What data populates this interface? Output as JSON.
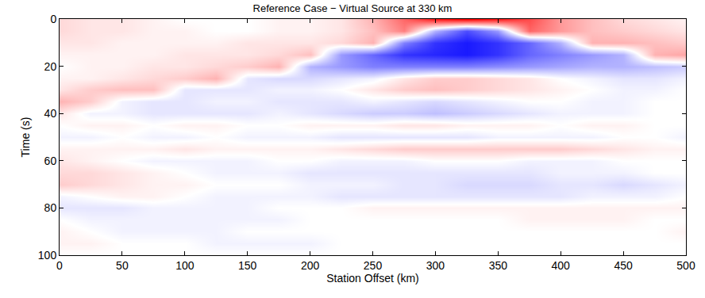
{
  "chart_data": {
    "type": "heatmap",
    "title": "Reference Case − Virtual Source at 330 km",
    "x_label": "Station Offset (km)",
    "y_label": "Time (s)",
    "x": [
      0,
      25,
      50,
      75,
      100,
      125,
      150,
      175,
      200,
      225,
      250,
      275,
      300,
      325,
      350,
      375,
      400,
      425,
      450,
      475,
      500
    ],
    "y": [
      0,
      5,
      10,
      15,
      20,
      25,
      30,
      35,
      40,
      45,
      50,
      55,
      60,
      65,
      70,
      75,
      80,
      85,
      90,
      95,
      100
    ],
    "cells": [
      [
        0.15,
        0.1,
        0.1,
        0.05,
        0,
        0,
        0,
        0.05,
        0.05,
        0.1,
        0.3,
        0.6,
        0.9,
        1,
        0.9,
        0.7,
        0.4,
        0.25,
        0.15,
        0.1,
        0.05
      ],
      [
        0.15,
        0.1,
        0.1,
        0.05,
        0.05,
        0,
        0,
        0.05,
        0.05,
        0.1,
        0.25,
        0.5,
        -0.3,
        -0.7,
        -0.4,
        0.6,
        0.4,
        0.25,
        0.2,
        0.15,
        0.1
      ],
      [
        0.1,
        0.1,
        0.05,
        0.05,
        0.05,
        0.05,
        0.1,
        0.1,
        0.1,
        0.15,
        0.3,
        -0.5,
        -0.8,
        -0.9,
        -0.8,
        -0.6,
        -0.3,
        0.3,
        0.3,
        0.25,
        0.2
      ],
      [
        0.05,
        0.05,
        0.05,
        0.05,
        0.1,
        0.1,
        0.1,
        0.15,
        0.25,
        -0.4,
        -0.6,
        -0.8,
        -0.85,
        -0.9,
        -0.8,
        -0.6,
        -0.5,
        -0.4,
        -0.3,
        0.3,
        0.35
      ],
      [
        0,
        0.05,
        0.05,
        0.1,
        0.1,
        0.15,
        0.2,
        0.3,
        -0.3,
        -0.4,
        -0.5,
        -0.5,
        -0.5,
        -0.5,
        -0.45,
        -0.4,
        -0.35,
        -0.3,
        -0.3,
        -0.25,
        -0.2
      ],
      [
        0.05,
        0.05,
        0.1,
        0.15,
        0.2,
        0.3,
        -0.1,
        -0.15,
        -0.15,
        -0.1,
        -0.05,
        0.1,
        0.2,
        0.2,
        0.15,
        0.1,
        0,
        -0.05,
        -0.1,
        -0.1,
        -0.05
      ],
      [
        0.1,
        0.2,
        0.25,
        0.25,
        -0.1,
        -0.1,
        -0.1,
        -0.05,
        -0.05,
        0,
        0.1,
        0.2,
        0.25,
        0.2,
        0.15,
        0.1,
        0.05,
        0,
        -0.05,
        -0.05,
        0
      ],
      [
        0.3,
        0.2,
        -0.05,
        -0.1,
        -0.1,
        -0.05,
        -0.05,
        -0.1,
        -0.1,
        -0.1,
        -0.05,
        -0.1,
        -0.15,
        -0.1,
        -0.05,
        0,
        0,
        -0.05,
        -0.05,
        0,
        0
      ],
      [
        0.1,
        -0.05,
        -0.05,
        -0.1,
        -0.1,
        -0.1,
        -0.1,
        -0.05,
        -0.1,
        -0.15,
        -0.2,
        -0.2,
        -0.25,
        -0.2,
        -0.15,
        -0.1,
        -0.05,
        -0.05,
        -0.05,
        0,
        0
      ],
      [
        0,
        0.05,
        0.05,
        0,
        0.05,
        0.05,
        0,
        0,
        0.05,
        0.05,
        0.05,
        0.1,
        0.1,
        0.05,
        0.05,
        0.05,
        0,
        0.05,
        0.05,
        0,
        0
      ],
      [
        -0.05,
        -0.05,
        0,
        -0.05,
        -0.05,
        0,
        -0.05,
        -0.05,
        -0.05,
        -0.1,
        -0.1,
        -0.1,
        -0.1,
        -0.1,
        -0.05,
        -0.05,
        -0.05,
        -0.05,
        0,
        0,
        -0.05
      ],
      [
        0.05,
        0.05,
        0.05,
        0.05,
        0.1,
        0.05,
        0.05,
        0.05,
        0.05,
        0.1,
        0.15,
        0.2,
        0.2,
        0.2,
        0.2,
        0.2,
        0.2,
        0.15,
        0.1,
        0.05,
        0.05
      ],
      [
        0.1,
        0.05,
        0,
        -0.05,
        -0.05,
        -0.05,
        -0.05,
        0,
        0,
        -0.05,
        -0.05,
        -0.05,
        0,
        0,
        0,
        -0.05,
        -0.05,
        -0.05,
        0,
        0,
        0
      ],
      [
        0.15,
        0.15,
        0.1,
        0.05,
        0,
        -0.05,
        -0.05,
        -0.05,
        -0.1,
        -0.1,
        -0.1,
        -0.1,
        -0.1,
        -0.1,
        -0.1,
        -0.1,
        -0.05,
        -0.05,
        -0.05,
        0,
        0
      ],
      [
        0.2,
        0.15,
        0.1,
        0.05,
        0.05,
        0,
        0,
        0,
        -0.05,
        -0.05,
        -0.05,
        -0.1,
        -0.1,
        -0.15,
        -0.15,
        -0.15,
        -0.1,
        -0.1,
        -0.15,
        -0.1,
        -0.05
      ],
      [
        -0.05,
        0,
        0.05,
        0.05,
        0,
        -0.05,
        -0.05,
        -0.05,
        -0.05,
        -0.1,
        -0.1,
        -0.1,
        -0.1,
        -0.1,
        -0.1,
        -0.1,
        -0.1,
        -0.05,
        -0.05,
        -0.05,
        0
      ],
      [
        -0.1,
        -0.1,
        -0.1,
        -0.05,
        -0.05,
        -0.05,
        -0.05,
        0,
        0,
        0,
        0.05,
        0.05,
        0.05,
        0.05,
        0.05,
        0.05,
        0.05,
        0.05,
        0.05,
        0.05,
        0.05
      ],
      [
        0,
        -0.05,
        -0.05,
        -0.05,
        -0.05,
        -0.05,
        -0.05,
        -0.05,
        0,
        0,
        0,
        0,
        0,
        0,
        0,
        0.05,
        0.05,
        0.05,
        0.05,
        0,
        0
      ],
      [
        0.05,
        0,
        -0.05,
        -0.05,
        -0.05,
        -0.05,
        0,
        0,
        0,
        0,
        0,
        0,
        0,
        0,
        0,
        0,
        0,
        0,
        0,
        0,
        0.05
      ],
      [
        0.05,
        0.05,
        0,
        0,
        0,
        -0.05,
        -0.05,
        -0.05,
        -0.05,
        0,
        0,
        0,
        0,
        0,
        0,
        0,
        0,
        0,
        0,
        0,
        0
      ],
      [
        0,
        0,
        0,
        0,
        0,
        0,
        0,
        0,
        0,
        0,
        0,
        0,
        0,
        0,
        0,
        0,
        0,
        0,
        0,
        0,
        0
      ]
    ],
    "zlim": [
      -1,
      1
    ],
    "xlim": [
      0,
      500
    ],
    "ylim": [
      100,
      0
    ],
    "xticks": [
      0,
      50,
      100,
      150,
      200,
      250,
      300,
      350,
      400,
      450,
      500
    ],
    "yticks": [
      0,
      20,
      40,
      60,
      80,
      100
    ]
  }
}
